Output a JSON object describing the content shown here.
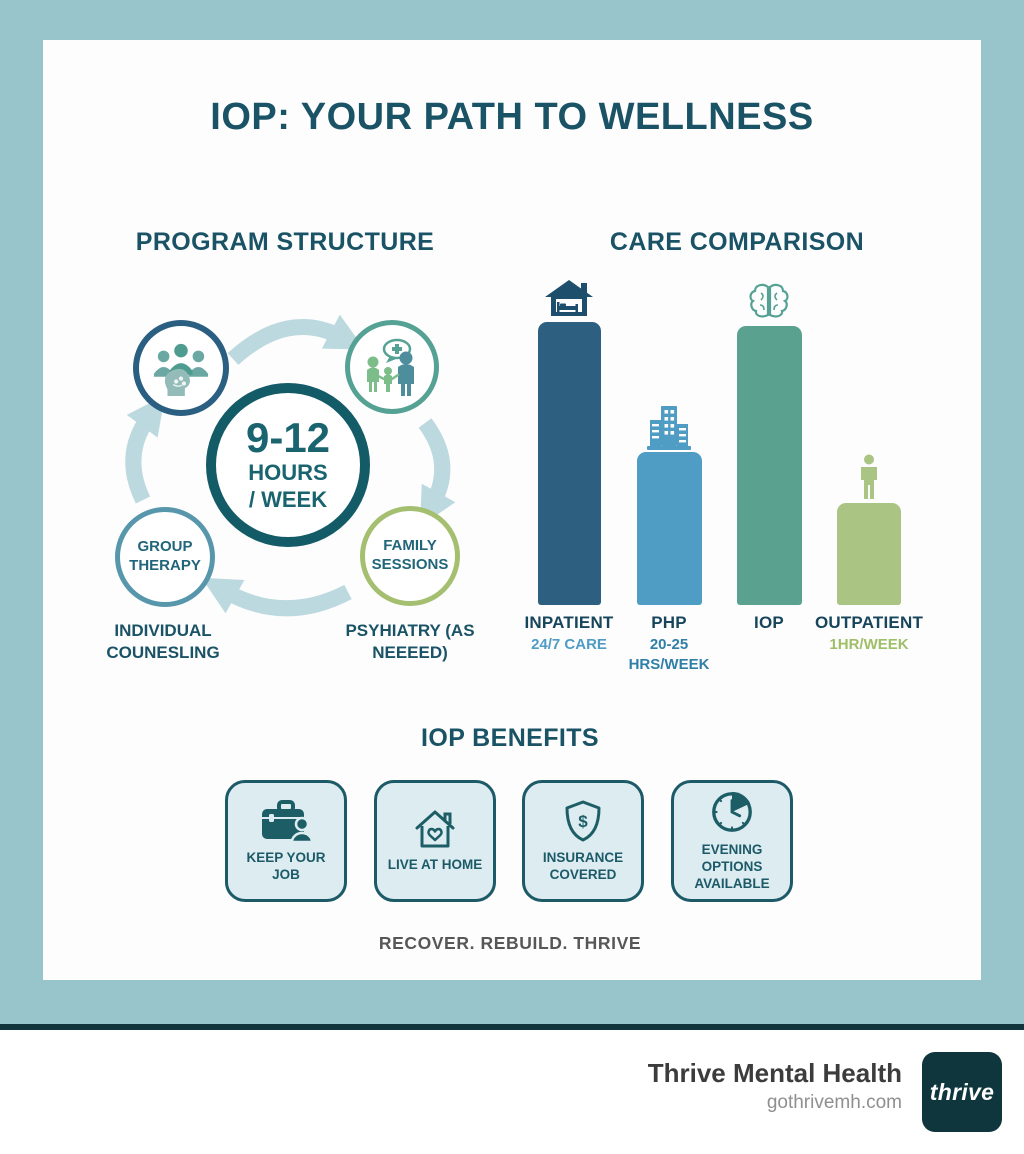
{
  "title": "IOP: YOUR PATH TO WELLNESS",
  "program": {
    "heading": "PROGRAM STRUCTURE",
    "center": {
      "value": "9-12",
      "line2": "HOURS",
      "line3": "/ WEEK"
    },
    "nodes": {
      "group_label": "GROUP THERAPY",
      "family_label": "FAMILY SESSIONS",
      "individual_label": "INDIVIDUAL COUNESLING",
      "psychiatry_label": "PSYHIATRY (AS NEEEED)"
    }
  },
  "chart": {
    "heading": "CARE COMPARISON"
  },
  "chart_data": {
    "type": "bar",
    "title": "CARE COMPARISON",
    "categories": [
      "INPATIENT",
      "PHP",
      "IOP",
      "OUTPATIENT"
    ],
    "sublabels": [
      "24/7 CARE",
      "20-25 HRS/WEEK",
      "",
      "1HR/WEEK"
    ],
    "values_pct_of_max": [
      100,
      54,
      98.5,
      36
    ],
    "colors": [
      "#2d5f81",
      "#4f9cc4",
      "#5ba18f",
      "#a9c483"
    ],
    "icons": [
      "house-bed-icon",
      "building-icon",
      "brain-icon",
      "person-icon"
    ],
    "xlabel": "",
    "ylabel": "",
    "grid": false,
    "legend": false
  },
  "benefits": {
    "heading": "IOP BENEFITS",
    "items": [
      {
        "label": "KEEP YOUR JOB",
        "icon": "briefcase-person-icon"
      },
      {
        "label": "LIVE AT HOME",
        "icon": "house-heart-icon"
      },
      {
        "label": "INSURANCE COVERED",
        "icon": "shield-dollar-icon",
        "icon_glyph": "$"
      },
      {
        "label": "EVENING OPTIONS AVAILABLE",
        "icon": "clock-icon"
      }
    ]
  },
  "tagline": "RECOVER. REBUILD. THRIVE",
  "footer": {
    "brand": "Thrive Mental Health",
    "website": "gothrivemh.com",
    "logo_text": "thrive"
  },
  "colors": {
    "frame": "#98c5cb",
    "heading_text": "#1a5366",
    "divider": "#12343c",
    "arrow": "#bcd9df",
    "benefit_card_bg": "#dcecf1",
    "benefit_border": "#1c5a68",
    "logo_bg": "#0e363c"
  }
}
